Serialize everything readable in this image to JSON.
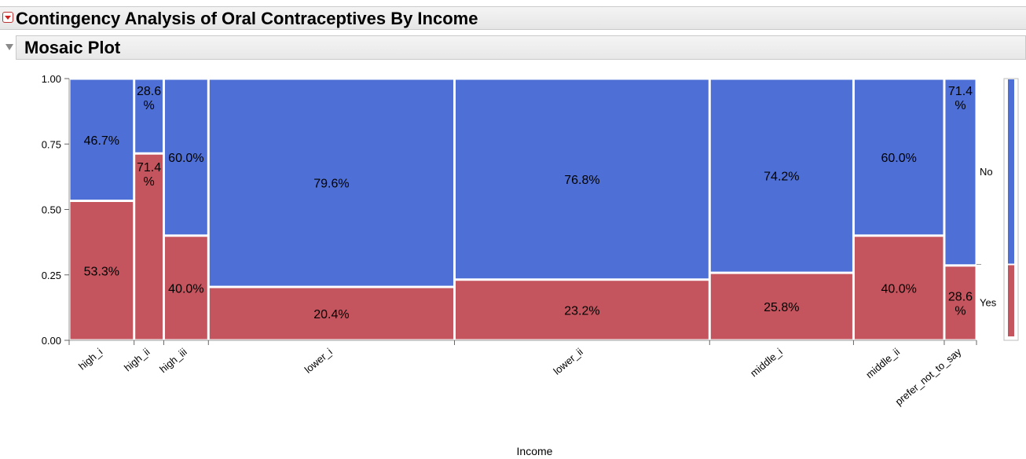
{
  "header": {
    "report_title": "Contingency Analysis of Oral Contraceptives By Income",
    "section_title": "Mosaic Plot"
  },
  "chart_data": {
    "type": "mosaic",
    "xlabel": "Income",
    "ylim": [
      0,
      1
    ],
    "yticks": [
      "0.00",
      "0.25",
      "0.50",
      "0.75",
      "1.00"
    ],
    "levels": [
      "Yes",
      "No"
    ],
    "colors": {
      "Yes": "#c4545d",
      "No": "#4d6fd6"
    },
    "categories": [
      "high_i",
      "high_ii",
      "high_iii",
      "lower_i",
      "lower_ii",
      "middle_i",
      "middle_ii",
      "prefer_not_to_say"
    ],
    "column_widths": [
      0.1058,
      0.0483,
      0.0727,
      0.4007,
      0.4155,
      0.2343,
      0.1478,
      0.0525
    ],
    "yes_share": [
      0.533,
      0.714,
      0.4,
      0.204,
      0.232,
      0.258,
      0.4,
      0.286
    ],
    "no_share": [
      0.467,
      0.286,
      0.6,
      0.796,
      0.768,
      0.742,
      0.6,
      0.714
    ],
    "yes_labels": [
      "53.3%",
      "71.4\n%",
      "40.0%",
      "20.4%",
      "23.2%",
      "25.8%",
      "40.0%",
      "28.6\n%"
    ],
    "no_labels": [
      "46.7%",
      "28.6\n%",
      "60.0%",
      "79.6%",
      "76.8%",
      "74.2%",
      "60.0%",
      "71.4\n%"
    ],
    "marginal_yes": 0.29
  }
}
